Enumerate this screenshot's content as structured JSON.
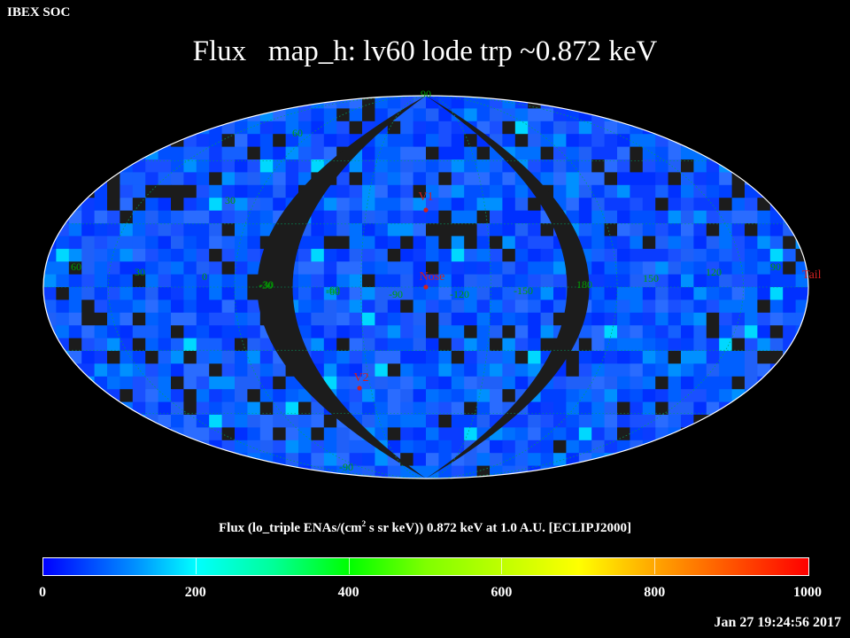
{
  "header": {
    "org": "IBEX SOC",
    "title": "Flux   map_h: lv60 lode trp ~0.872 keV"
  },
  "map": {
    "projection": "aitoff",
    "background": "#000000",
    "void_color": "#1c1c1c",
    "grid_color": "#00a060",
    "label_color": "#00a000",
    "marker_color": "#d02020",
    "lat_labels": [
      "60",
      "30",
      "-30",
      "-60",
      "90",
      "-90"
    ],
    "lon_labels": [
      "60",
      "30",
      "0",
      "-30",
      "-60",
      "-90",
      "-120",
      "-150",
      "180",
      "150",
      "120",
      "90"
    ],
    "markers": [
      {
        "name": "V1",
        "label": "V1"
      },
      {
        "name": "Nose",
        "label": "Nose"
      },
      {
        "name": "V2",
        "label": "V2"
      }
    ],
    "tail_label": "Tail"
  },
  "colorbar": {
    "caption_pre": "Flux (lo_triple ENAs/(cm",
    "caption_sup": "2",
    "caption_post": " s sr keV))  0.872 keV at 1.0 A.U. [ECLIPJ2000]",
    "min": 0,
    "max": 1000,
    "ticks": [
      "0",
      "200",
      "400",
      "600",
      "800",
      "1000"
    ],
    "colors": [
      "#0000ff",
      "#0090ff",
      "#00ffff",
      "#00ff99",
      "#00ff00",
      "#7fff00",
      "#ffff00",
      "#ffa500",
      "#ff0000"
    ]
  },
  "footer": {
    "timestamp": "Jan 27 19:24:56 2017"
  }
}
